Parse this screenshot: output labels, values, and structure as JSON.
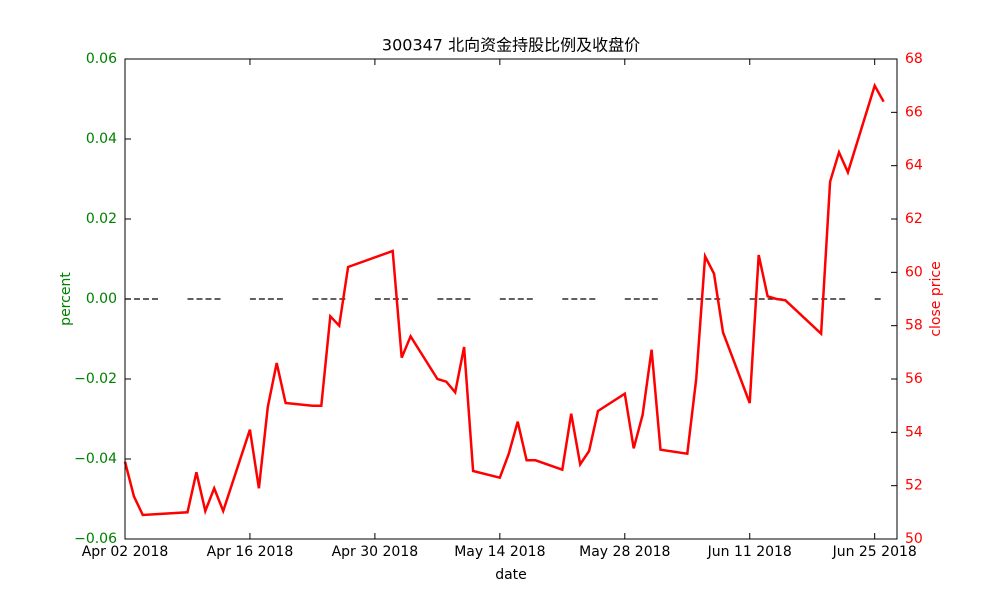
{
  "chart_data": {
    "type": "line",
    "title": "300347 北向资金持股比例及收盘价",
    "xlabel": "date",
    "ylabel": "percent",
    "y2label": "close price",
    "ylabel_color": "#008000",
    "y2label_color": "#ff0000",
    "xlim": [
      "2018-04-02",
      "2018-06-27T12:00"
    ],
    "xticks": [
      {
        "value": "2018-04-02",
        "label": "Apr 02 2018"
      },
      {
        "value": "2018-04-16",
        "label": "Apr 16 2018"
      },
      {
        "value": "2018-04-30",
        "label": "Apr 30 2018"
      },
      {
        "value": "2018-05-14",
        "label": "May 14 2018"
      },
      {
        "value": "2018-05-28",
        "label": "May 28 2018"
      },
      {
        "value": "2018-06-11",
        "label": "Jun 11 2018"
      },
      {
        "value": "2018-06-25",
        "label": "Jun 25 2018"
      }
    ],
    "ylim": [
      -0.06,
      0.06
    ],
    "yticks": [
      {
        "value": -0.06,
        "label": "−0.06"
      },
      {
        "value": -0.04,
        "label": "−0.04"
      },
      {
        "value": -0.02,
        "label": "−0.02"
      },
      {
        "value": 0,
        "label": "0.00"
      },
      {
        "value": 0.02,
        "label": "0.02"
      },
      {
        "value": 0.04,
        "label": "0.04"
      },
      {
        "value": 0.06,
        "label": "0.06"
      }
    ],
    "y2lim": [
      50,
      68
    ],
    "y2ticks": [
      50,
      52,
      54,
      56,
      58,
      60,
      62,
      64,
      66,
      68
    ],
    "series": [
      {
        "name": "percent",
        "color": "#000000",
        "dashed": true,
        "x": [
          "2018-04-02",
          "2018-04-06",
          "2018-04-07",
          "2018-04-09",
          "2018-04-13",
          "2018-04-14",
          "2018-04-16",
          "2018-04-20",
          "2018-04-21",
          "2018-04-23",
          "2018-04-27",
          "2018-04-28",
          "2018-04-30",
          "2018-05-04",
          "2018-05-05",
          "2018-05-07",
          "2018-05-11",
          "2018-05-12",
          "2018-05-14",
          "2018-05-18",
          "2018-05-19",
          "2018-05-21",
          "2018-05-25",
          "2018-05-26",
          "2018-05-28",
          "2018-06-01",
          "2018-06-02",
          "2018-06-04",
          "2018-06-08",
          "2018-06-09",
          "2018-06-11",
          "2018-06-15",
          "2018-06-16",
          "2018-06-18",
          "2018-06-22",
          "2018-06-23",
          "2018-06-25",
          "2018-06-26"
        ],
        "values": [
          0,
          0,
          null,
          0,
          0,
          null,
          0,
          0,
          null,
          0,
          0,
          null,
          0,
          0,
          null,
          0,
          0,
          null,
          0,
          0,
          null,
          0,
          0,
          null,
          0,
          0,
          null,
          0,
          0,
          null,
          0,
          0,
          null,
          0,
          0,
          null,
          0,
          0
        ]
      },
      {
        "name": "close price",
        "color": "#ff0000",
        "axis": "y2",
        "x": [
          "2018-04-02",
          "2018-04-03",
          "2018-04-04",
          "2018-04-09",
          "2018-04-10",
          "2018-04-11",
          "2018-04-12",
          "2018-04-13",
          "2018-04-16",
          "2018-04-17",
          "2018-04-18",
          "2018-04-19",
          "2018-04-20",
          "2018-04-23",
          "2018-04-24",
          "2018-04-25",
          "2018-04-26",
          "2018-04-27",
          "2018-05-02",
          "2018-05-03",
          "2018-05-04",
          "2018-05-07",
          "2018-05-08",
          "2018-05-09",
          "2018-05-10",
          "2018-05-11",
          "2018-05-14",
          "2018-05-15",
          "2018-05-16",
          "2018-05-17",
          "2018-05-18",
          "2018-05-21",
          "2018-05-22",
          "2018-05-23",
          "2018-05-24",
          "2018-05-25",
          "2018-05-28",
          "2018-05-29",
          "2018-05-30",
          "2018-05-31",
          "2018-06-01",
          "2018-06-04",
          "2018-06-05",
          "2018-06-06",
          "2018-06-07",
          "2018-06-08",
          "2018-06-11",
          "2018-06-12",
          "2018-06-13",
          "2018-06-14",
          "2018-06-15",
          "2018-06-19",
          "2018-06-20",
          "2018-06-21",
          "2018-06-22",
          "2018-06-25",
          "2018-06-26"
        ],
        "values": [
          52.9,
          51.6,
          50.9,
          51.0,
          52.5,
          51.05,
          51.9,
          51.05,
          54.1,
          51.9,
          54.95,
          56.6,
          55.1,
          55.0,
          55.0,
          58.35,
          58.0,
          60.2,
          60.8,
          56.8,
          57.6,
          56.0,
          55.9,
          55.5,
          57.2,
          52.55,
          52.3,
          53.2,
          54.4,
          52.95,
          52.95,
          52.6,
          54.7,
          52.8,
          53.3,
          54.8,
          55.45,
          53.4,
          54.65,
          57.1,
          53.35,
          53.2,
          56.0,
          60.6,
          59.95,
          57.75,
          55.1,
          60.65,
          59.1,
          59.0,
          58.95,
          57.7,
          63.4,
          64.5,
          63.75,
          67.0,
          66.4
        ]
      }
    ]
  }
}
